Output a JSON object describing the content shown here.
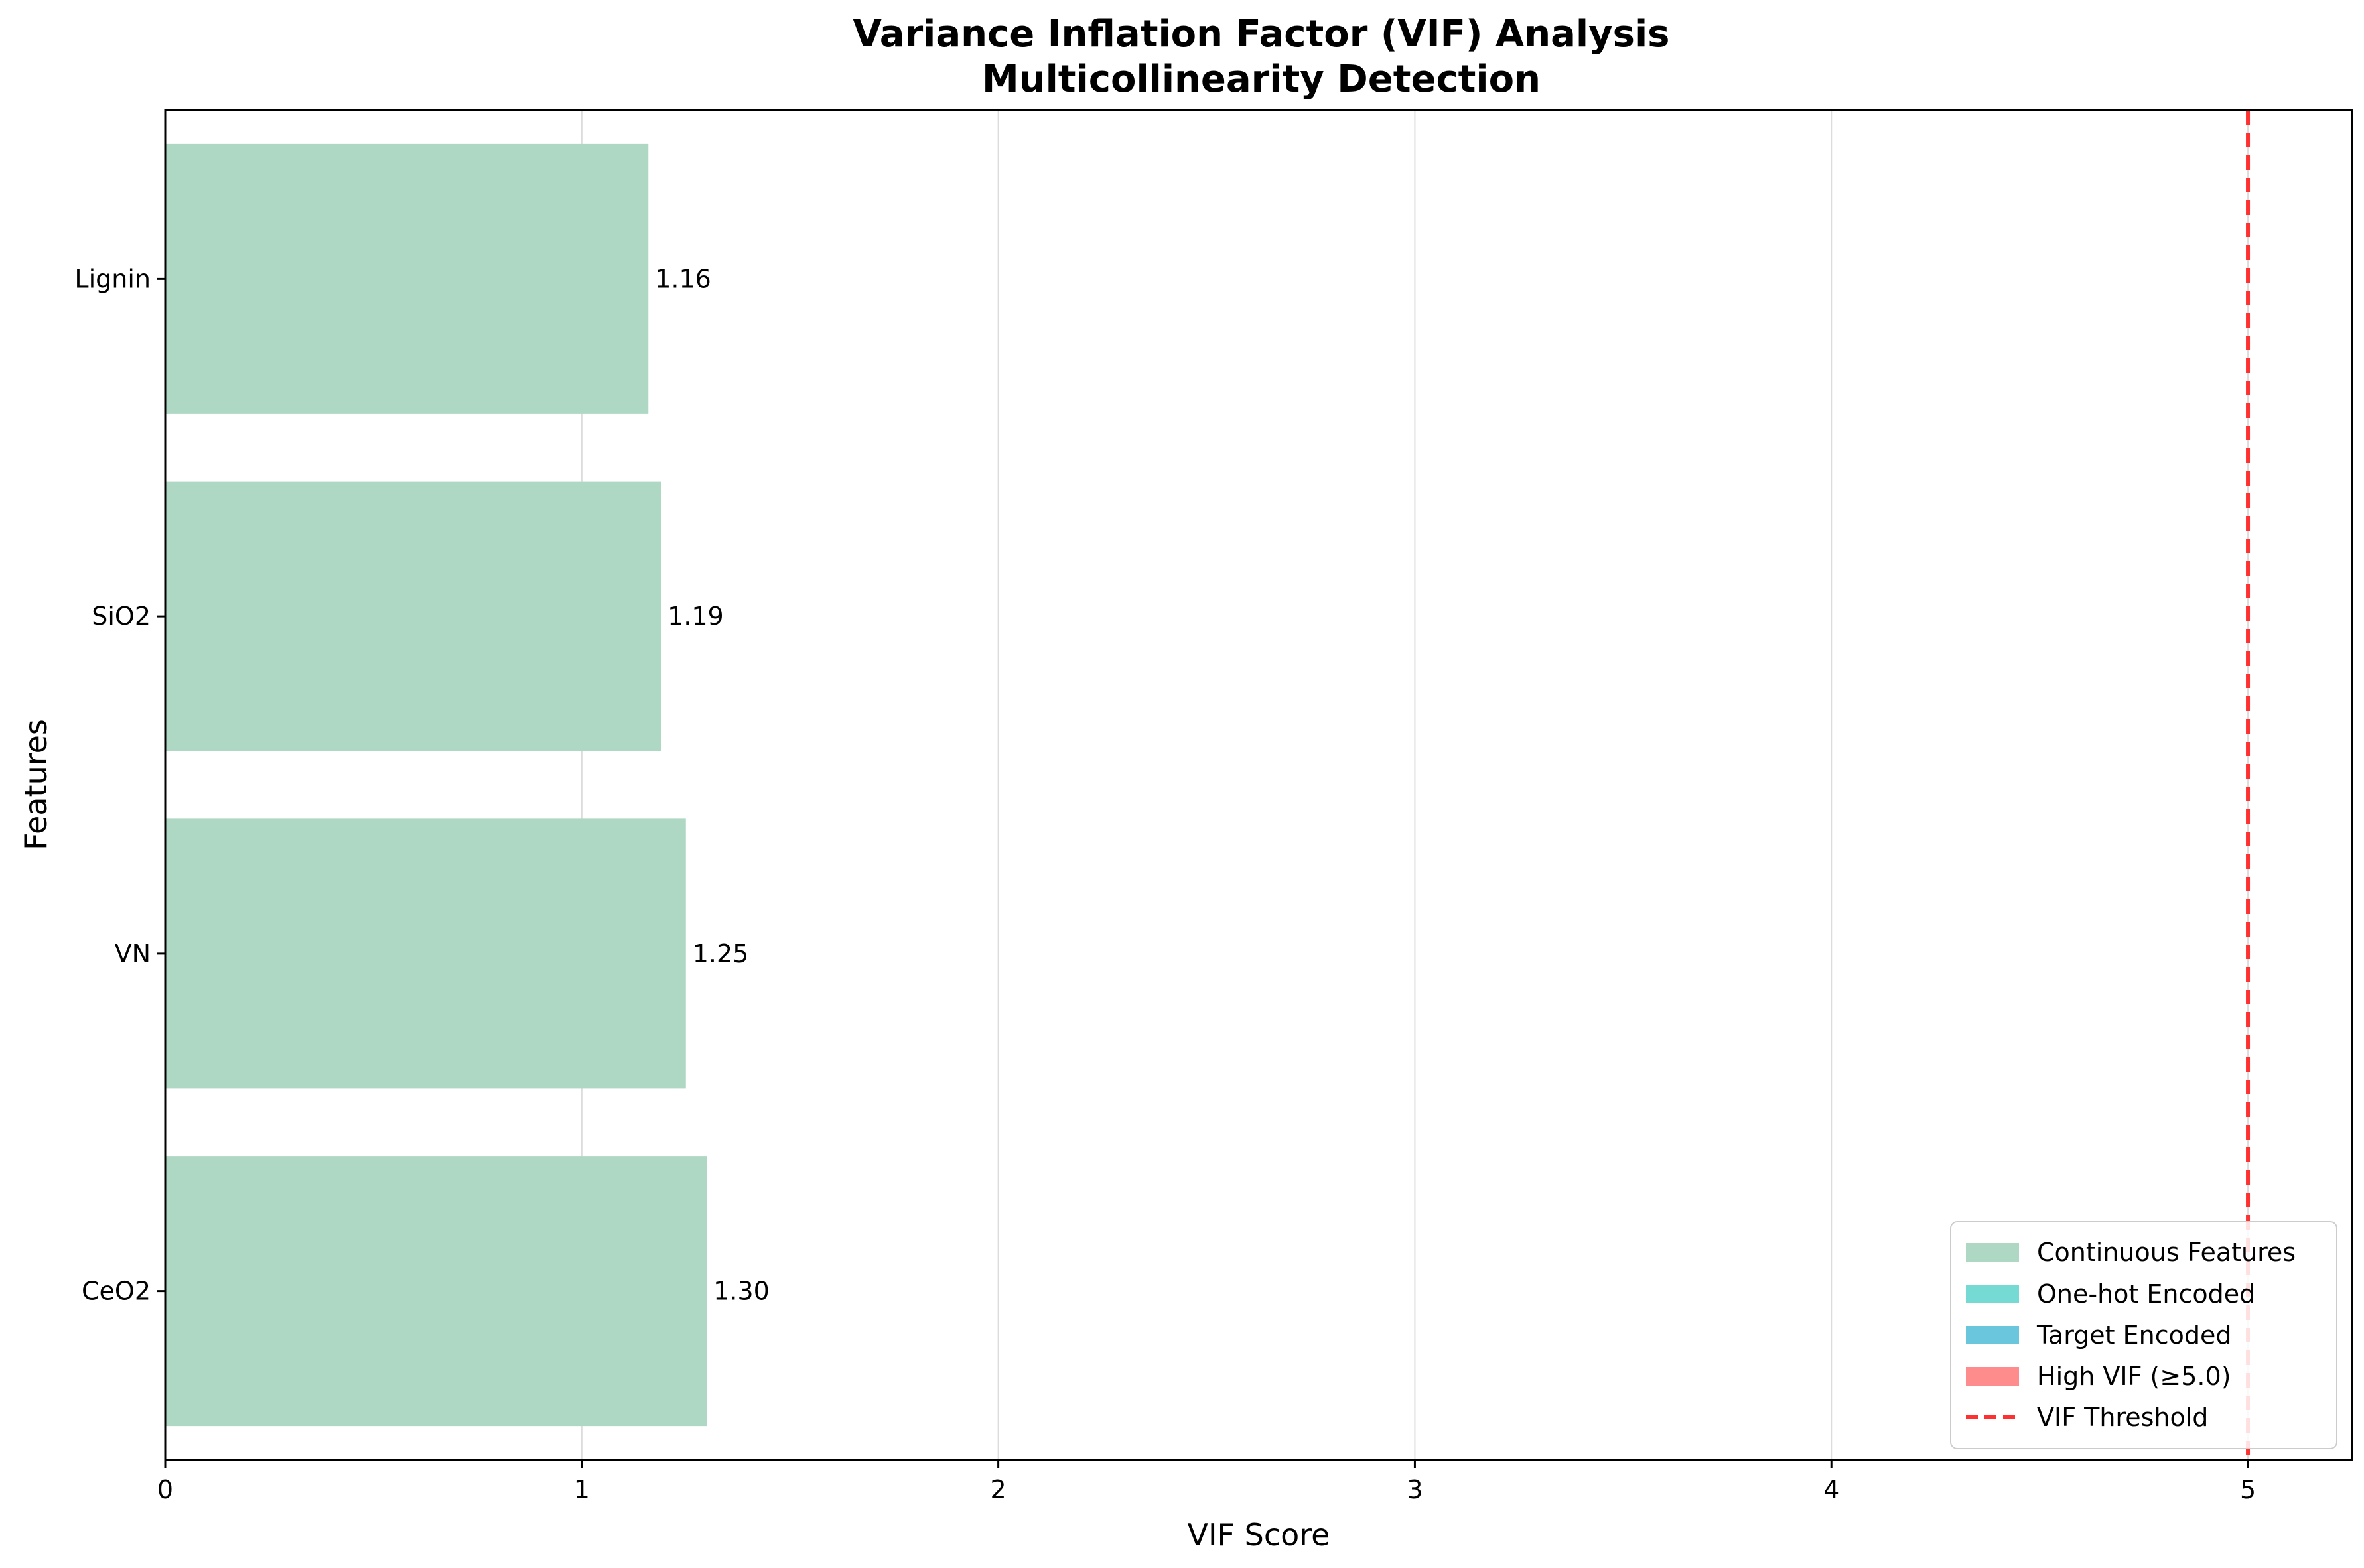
{
  "chart_data": {
    "type": "bar",
    "orientation": "horizontal",
    "title": "Variance Inflation Factor (VIF) Analysis",
    "subtitle": "Multicollinearity Detection",
    "xlabel": "VIF Score",
    "ylabel": "Features",
    "xlim": [
      0,
      5.25
    ],
    "xticks": [
      0,
      1,
      2,
      3,
      4,
      5
    ],
    "categories": [
      "Lignin",
      "SiO2",
      "VN",
      "CeO2"
    ],
    "values": [
      1.16,
      1.19,
      1.25,
      1.3
    ],
    "data_labels": [
      "1.16",
      "1.19",
      "1.25",
      "1.30"
    ],
    "bar_color": "#aed8c4",
    "threshold": {
      "value": 5.0,
      "color": "#ff3030",
      "style": "dashed"
    },
    "grid": {
      "x": true,
      "y": false
    },
    "legend": {
      "position": "bottom-right",
      "entries": [
        {
          "label": "Continuous Features",
          "color": "#aed8c4",
          "kind": "patch"
        },
        {
          "label": "One-hot Encoded",
          "color": "#75dad3",
          "kind": "patch"
        },
        {
          "label": "Target Encoded",
          "color": "#6ac6dc",
          "kind": "patch"
        },
        {
          "label": "High VIF (≥5.0)",
          "color": "#ff8c8c",
          "kind": "patch"
        },
        {
          "label": "VIF Threshold",
          "color": "#ff3030",
          "kind": "dashed-line"
        }
      ]
    }
  }
}
